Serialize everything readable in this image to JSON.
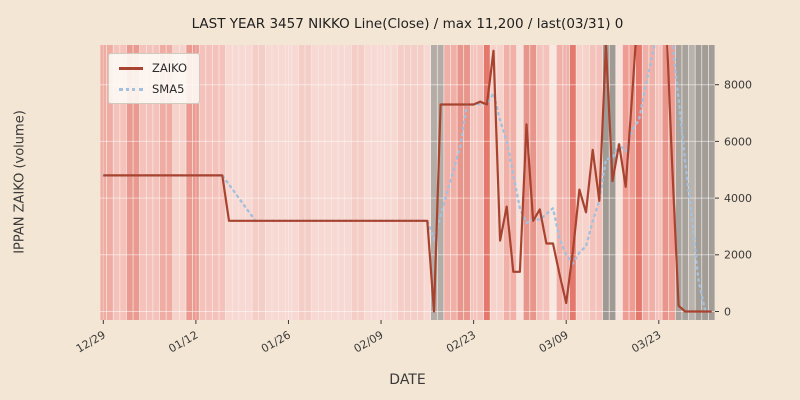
{
  "figure": {
    "background": "#f4e6d4",
    "plot_background": "#f7ece6"
  },
  "chart_data": {
    "type": "line",
    "title": "LAST YEAR 3457 NIKKO Line(Close) / max 11,200 / last(03/31) 0",
    "xlabel": "DATE",
    "ylabel": "IPPAN ZAIKO (volume)",
    "ylim": [
      -300,
      9400
    ],
    "yticks": [
      0,
      2000,
      4000,
      6000,
      8000
    ],
    "xticks": [
      {
        "label": "12/29",
        "index": 0
      },
      {
        "label": "01/12",
        "index": 14
      },
      {
        "label": "01/26",
        "index": 28
      },
      {
        "label": "02/09",
        "index": 42
      },
      {
        "label": "02/23",
        "index": 56
      },
      {
        "label": "03/09",
        "index": 70
      },
      {
        "label": "03/23",
        "index": 84
      }
    ],
    "n_points": 93,
    "grid": true,
    "grid_color": "#ffffff",
    "legend_position": "upper-left",
    "series": [
      {
        "name": "ZAIKO",
        "color": "#a8432f",
        "style": "solid",
        "values": [
          4800,
          4800,
          4800,
          4800,
          4800,
          4800,
          4800,
          4800,
          4800,
          4800,
          4800,
          4800,
          4800,
          4800,
          4800,
          4800,
          4800,
          4800,
          4800,
          3200,
          3200,
          3200,
          3200,
          3200,
          3200,
          3200,
          3200,
          3200,
          3200,
          3200,
          3200,
          3200,
          3200,
          3200,
          3200,
          3200,
          3200,
          3200,
          3200,
          3200,
          3200,
          3200,
          3200,
          3200,
          3200,
          3200,
          3200,
          3200,
          3200,
          3200,
          0,
          7300,
          7300,
          7300,
          7300,
          7300,
          7300,
          7400,
          7300,
          9200,
          2500,
          3700,
          1400,
          1400,
          6600,
          3200,
          3600,
          2400,
          2400,
          1300,
          300,
          2100,
          4300,
          3500,
          5700,
          3900,
          9400,
          4600,
          5900,
          4400,
          7700,
          11200,
          10600,
          11200,
          9800,
          11000,
          5300,
          200,
          0,
          0,
          0,
          0,
          0
        ]
      },
      {
        "name": "SMA5",
        "color": "#a3c0dd",
        "style": "dotted",
        "window": 5,
        "derived_from": "ZAIKO"
      }
    ],
    "background_bands_rle": [
      {
        "n": 2,
        "c": "#efaca3"
      },
      {
        "n": 2,
        "c": "#f4c2ba"
      },
      {
        "n": 2,
        "c": "#ea9a90"
      },
      {
        "n": 3,
        "c": "#f4c2ba"
      },
      {
        "n": 2,
        "c": "#efaca3"
      },
      {
        "n": 2,
        "c": "#f6d2cb"
      },
      {
        "n": 2,
        "c": "#ea9a90"
      },
      {
        "n": 4,
        "c": "#f4c2ba"
      },
      {
        "n": 4,
        "c": "#f7d8d2"
      },
      {
        "n": 2,
        "c": "#f4cdc6"
      },
      {
        "n": 5,
        "c": "#f7d8d2"
      },
      {
        "n": 2,
        "c": "#f4cdc6"
      },
      {
        "n": 6,
        "c": "#f7d8d2"
      },
      {
        "n": 2,
        "c": "#f4cdc6"
      },
      {
        "n": 5,
        "c": "#f7d8d2"
      },
      {
        "n": 4,
        "c": "#f4cdc6"
      },
      {
        "n": 1,
        "c": "#f7d8d2"
      },
      {
        "n": 2,
        "c": "#b3aca7"
      },
      {
        "n": 2,
        "c": "#f0b0a8"
      },
      {
        "n": 2,
        "c": "#e8958b"
      },
      {
        "n": 2,
        "c": "#f4c2ba"
      },
      {
        "n": 1,
        "c": "#e4786c"
      },
      {
        "n": 2,
        "c": "#f6d2cb"
      },
      {
        "n": 2,
        "c": "#f0b0a8"
      },
      {
        "n": 1,
        "c": "#f8e3dc"
      },
      {
        "n": 2,
        "c": "#e8958b"
      },
      {
        "n": 2,
        "c": "#f4c2ba"
      },
      {
        "n": 1,
        "c": "#f8e8e0"
      },
      {
        "n": 2,
        "c": "#f0b0a8"
      },
      {
        "n": 1,
        "c": "#e4786c"
      },
      {
        "n": 2,
        "c": "#f6d2cb"
      },
      {
        "n": 2,
        "c": "#f4c2ba"
      },
      {
        "n": 2,
        "c": "#a09a95"
      },
      {
        "n": 1,
        "c": "#f8e3dc"
      },
      {
        "n": 2,
        "c": "#ef9d93"
      },
      {
        "n": 1,
        "c": "#e4786c"
      },
      {
        "n": 2,
        "c": "#f0b0a8"
      },
      {
        "n": 1,
        "c": "#f4c2ba"
      },
      {
        "n": 1,
        "c": "#e8958b"
      },
      {
        "n": 1,
        "c": "#ef9d93"
      },
      {
        "n": 2,
        "c": "#a8a29d"
      },
      {
        "n": 1,
        "c": "#b9b3ae"
      },
      {
        "n": 3,
        "c": "#a39d98"
      }
    ]
  },
  "legend": {
    "items": [
      {
        "label": "ZAIKO"
      },
      {
        "label": "SMA5"
      }
    ]
  }
}
